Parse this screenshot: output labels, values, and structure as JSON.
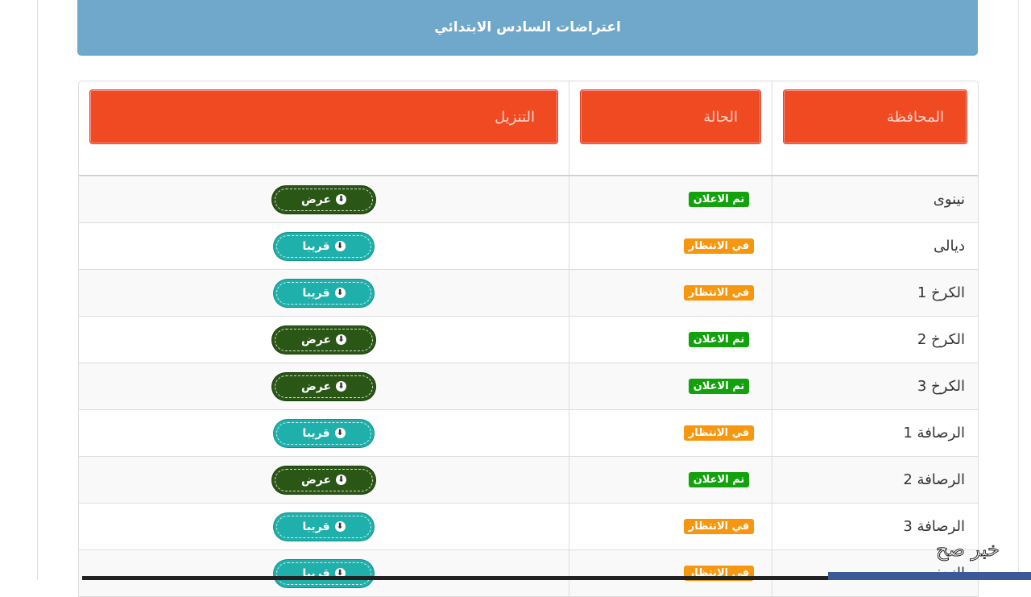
{
  "header": {
    "title": "اعتراضات السادس الابتدائي"
  },
  "table": {
    "columns": [
      "المحافظة",
      "الحالة",
      "التنزيل"
    ],
    "rows": [
      {
        "province": "نينوى",
        "status": "تم الاعلان",
        "status_type": "done",
        "action": "عرض",
        "action_type": "view"
      },
      {
        "province": "ديالى",
        "status": "في الانتظار",
        "status_type": "wait",
        "action": "قريبا",
        "action_type": "soon"
      },
      {
        "province": "الكرخ 1",
        "status": "في الانتظار",
        "status_type": "wait",
        "action": "قريبا",
        "action_type": "soon"
      },
      {
        "province": "الكرخ 2",
        "status": "تم الاعلان",
        "status_type": "done",
        "action": "عرض",
        "action_type": "view"
      },
      {
        "province": "الكرخ 3",
        "status": "تم الاعلان",
        "status_type": "done",
        "action": "عرض",
        "action_type": "view"
      },
      {
        "province": "الرصافة 1",
        "status": "في الانتظار",
        "status_type": "wait",
        "action": "قريبا",
        "action_type": "soon"
      },
      {
        "province": "الرصافة 2",
        "status": "تم الاعلان",
        "status_type": "done",
        "action": "عرض",
        "action_type": "view"
      },
      {
        "province": "الرصافة 3",
        "status": "في الانتظار",
        "status_type": "wait",
        "action": "قريبا",
        "action_type": "soon"
      },
      {
        "province": "النجف",
        "status": "في الانتظار",
        "status_type": "wait",
        "action": "قريبا",
        "action_type": "soon"
      }
    ]
  },
  "watermark": "خبر صح",
  "colors": {
    "panel": "#6fa8cb",
    "header_cell": "#f04a22",
    "done": "#13a10e",
    "wait": "#f7970f",
    "view_button": "#2a5716",
    "soon_button": "#1fb0ab"
  },
  "icons": {
    "button_icon": "download-circle-icon"
  }
}
